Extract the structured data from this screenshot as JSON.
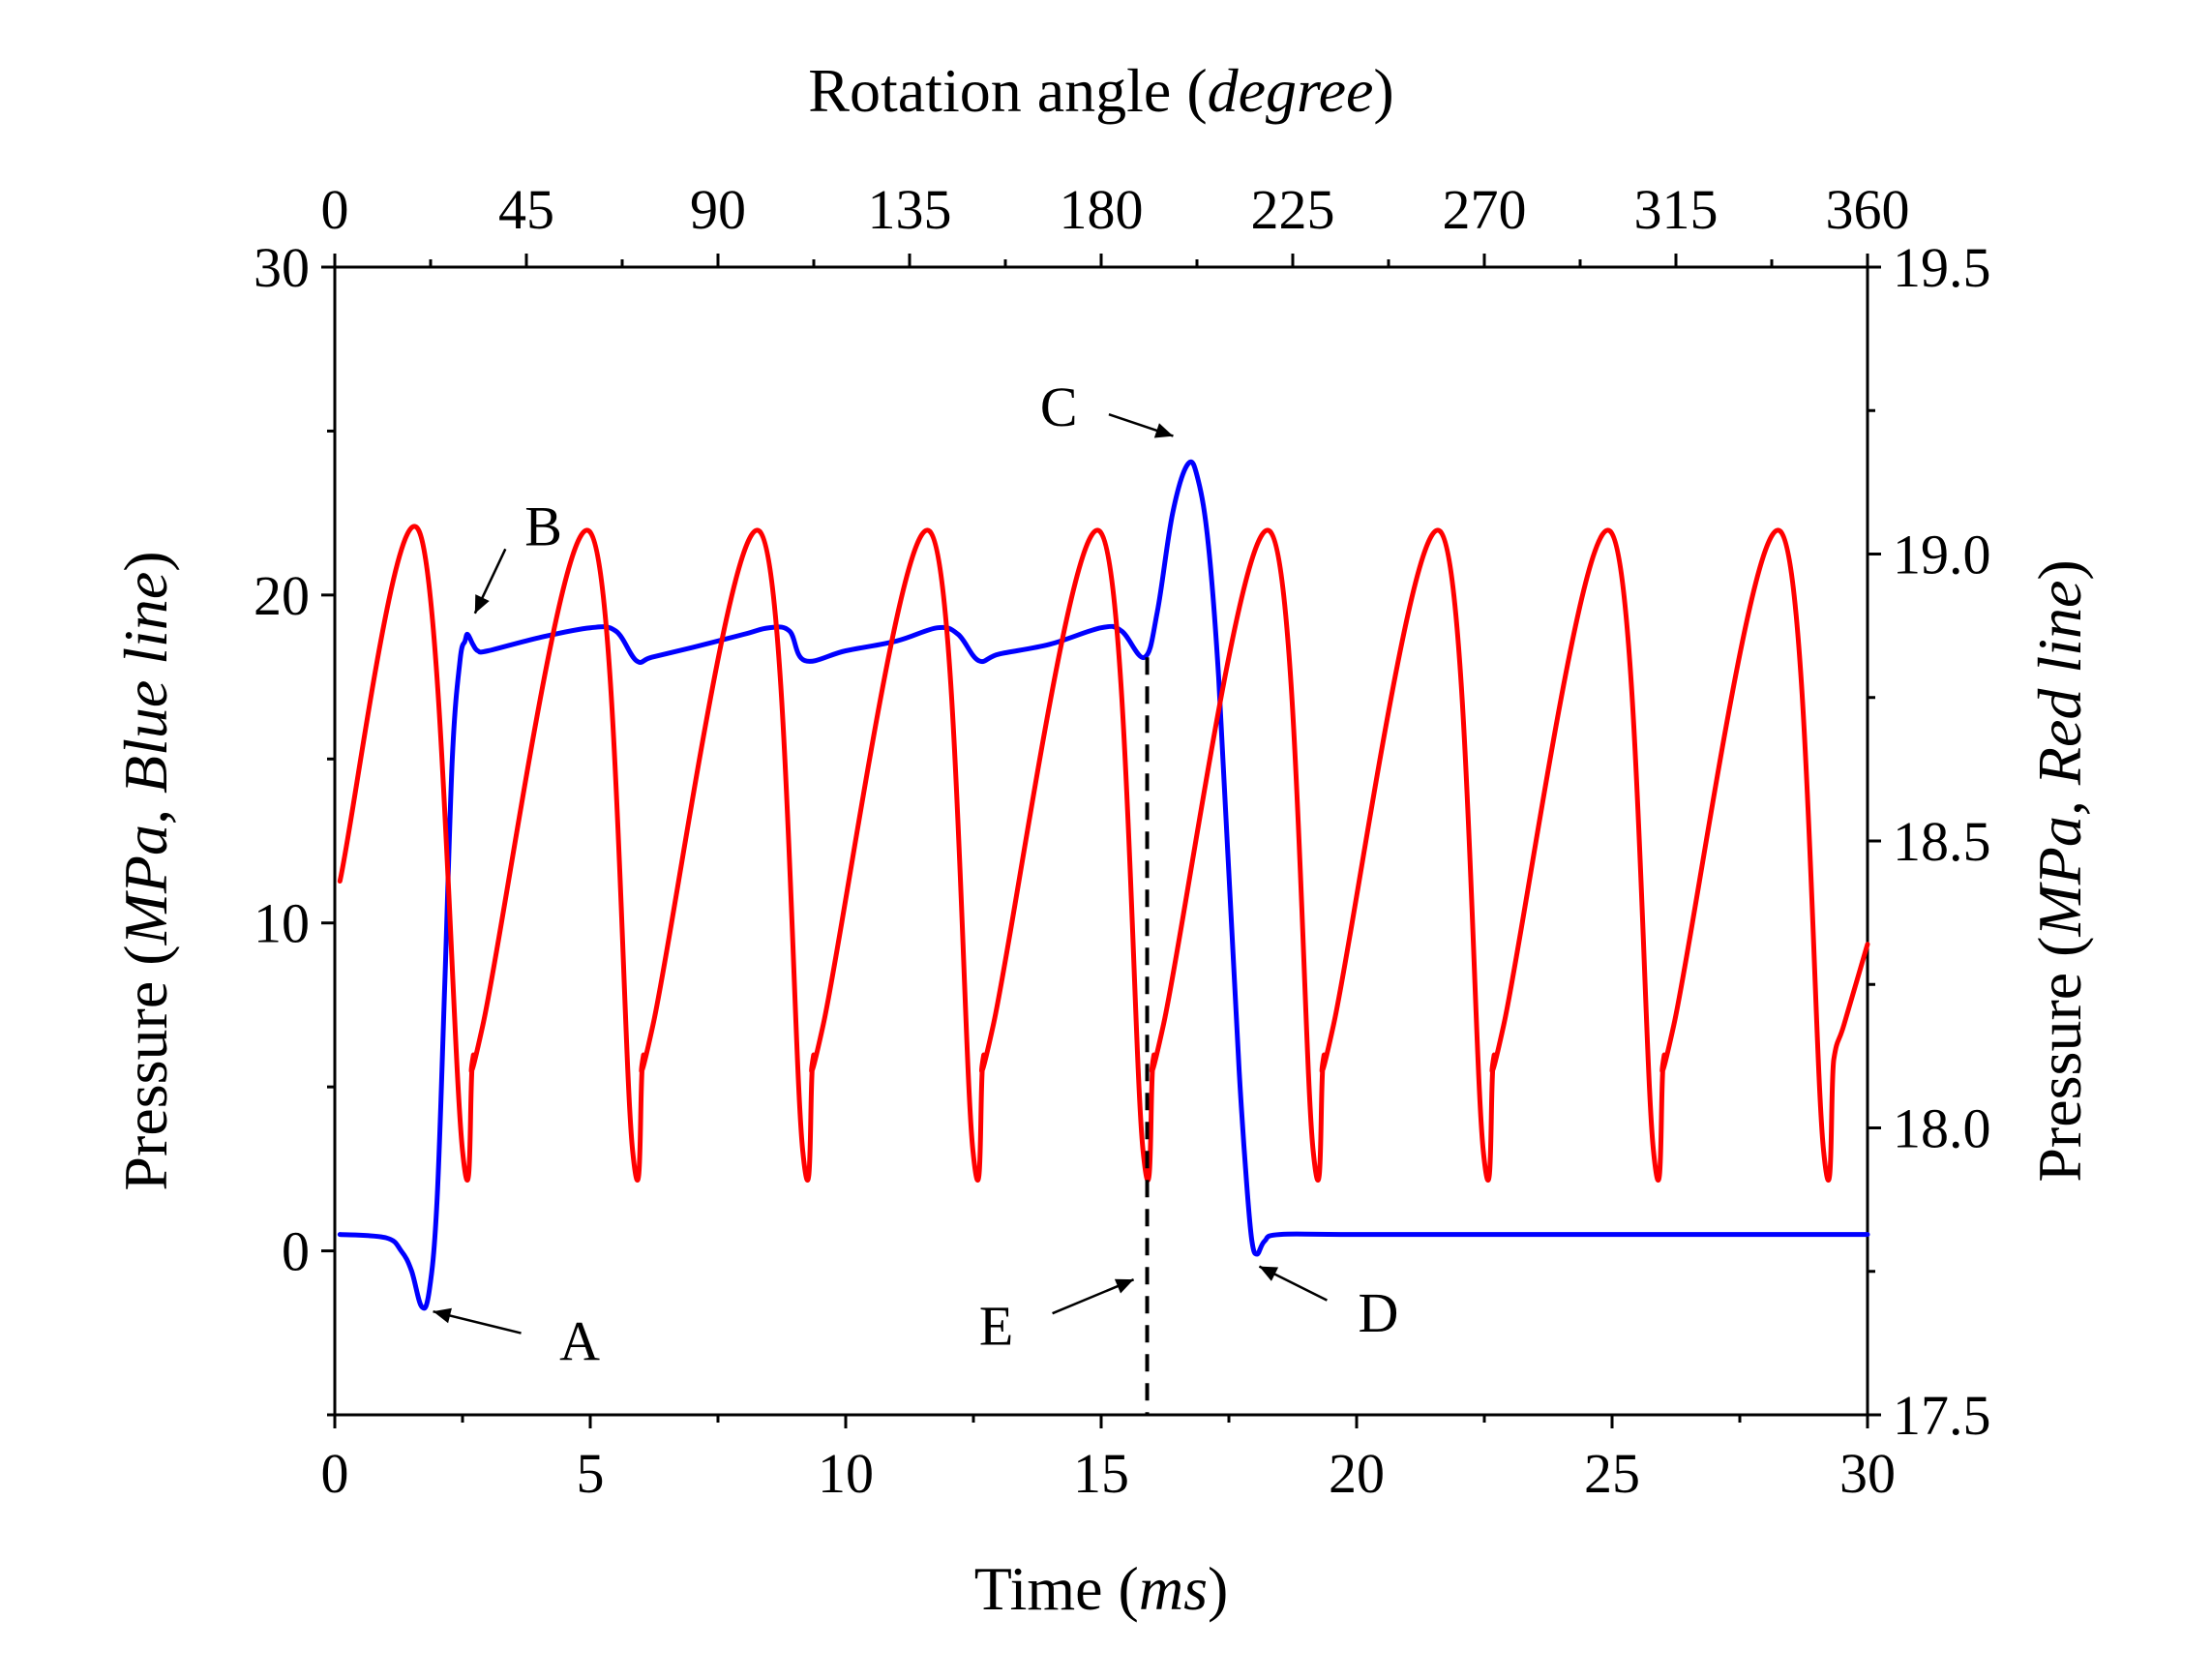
{
  "chart_data": {
    "type": "line",
    "title": "",
    "top_axis": {
      "label": "Rotation angle",
      "label_unit": "degree",
      "range": [
        0,
        360
      ],
      "ticks": [
        "0",
        "45",
        "90",
        "135",
        "180",
        "225",
        "270",
        "315",
        "360"
      ]
    },
    "x_axis": {
      "label": "Time",
      "label_unit": "ms",
      "range": [
        0,
        30
      ],
      "ticks": [
        "0",
        "5",
        "10",
        "15",
        "20",
        "25",
        "30"
      ]
    },
    "y_left": {
      "label_prefix": "Pressure (",
      "label_unit": "MPa, Blue line",
      "label_suffix": ")",
      "range": [
        -5,
        30
      ],
      "ticks": [
        "0",
        "10",
        "20",
        "30"
      ]
    },
    "y_right": {
      "label_prefix": "Pressure (",
      "label_unit": "MPa, Red line",
      "label_suffix": ")",
      "range": [
        17.5,
        19.5
      ],
      "ticks": [
        "17.5",
        "18.0",
        "18.5",
        "19.0",
        "19.5"
      ]
    },
    "series": [
      {
        "name": "Blue line",
        "color": "#0000ff",
        "axis": "left",
        "x": [
          0.1,
          1.0,
          1.3,
          1.5,
          1.7,
          1.85,
          2.0,
          2.15,
          2.3,
          2.45,
          2.55,
          2.6,
          2.7,
          2.8,
          3.0,
          4.0,
          5.0,
          5.5,
          5.9,
          6.2,
          7.0,
          8.0,
          8.5,
          8.9,
          9.2,
          10.0,
          11.0,
          11.8,
          12.2,
          12.6,
          13.0,
          14.0,
          15.0,
          15.4,
          15.85,
          16.1,
          16.4,
          16.7,
          16.9,
          17.1,
          17.3,
          17.5,
          17.7,
          17.85,
          17.95,
          18.05,
          18.2,
          18.5,
          20.0,
          25.0,
          30.0
        ],
        "y": [
          0.5,
          0.4,
          0.0,
          -0.6,
          -1.7,
          -1.2,
          1.5,
          8.0,
          15.0,
          18.0,
          18.6,
          18.8,
          18.5,
          18.3,
          18.3,
          18.7,
          19.0,
          18.9,
          18.0,
          18.1,
          18.4,
          18.8,
          19.0,
          18.9,
          18.0,
          18.3,
          18.6,
          19.0,
          18.8,
          18.0,
          18.2,
          18.5,
          19.0,
          18.9,
          18.1,
          19.5,
          22.5,
          24.0,
          23.5,
          21.5,
          17.5,
          11.5,
          5.5,
          2.0,
          0.3,
          -0.1,
          0.3,
          0.5,
          0.5,
          0.5,
          0.5
        ]
      },
      {
        "name": "Red line",
        "color": "#ff0000",
        "axis": "right",
        "period_ms": 3.33,
        "peak_ms": [
          1.65,
          4.98,
          8.31,
          11.64,
          14.97,
          18.3,
          21.63,
          24.96,
          28.29
        ],
        "trough_ms": [
          2.5,
          5.83,
          9.16,
          12.49,
          15.82,
          19.15,
          22.48,
          25.81,
          29.14
        ],
        "x": [
          0.1,
          1.65,
          2.5,
          2.7,
          2.9,
          4.98,
          5.83,
          6.03,
          6.23,
          8.31,
          9.16,
          9.36,
          9.56,
          11.64,
          12.49,
          12.69,
          12.89,
          14.97,
          15.82,
          16.02,
          16.22,
          18.3,
          19.15,
          19.35,
          19.55,
          21.63,
          22.48,
          22.68,
          22.88,
          24.96,
          25.81,
          26.01,
          26.21,
          28.29,
          29.14,
          29.34,
          29.54,
          30.0
        ],
        "y": [
          18.43,
          19.04,
          17.96,
          18.12,
          18.18,
          19.04,
          17.96,
          18.12,
          18.18,
          19.04,
          17.96,
          18.12,
          18.18,
          19.04,
          17.96,
          18.12,
          18.18,
          19.04,
          17.96,
          18.12,
          18.18,
          19.04,
          17.96,
          18.12,
          18.18,
          19.04,
          17.96,
          18.12,
          18.18,
          19.04,
          17.96,
          18.12,
          18.18,
          19.04,
          17.96,
          18.12,
          18.18,
          18.32
        ]
      }
    ],
    "vertical_reference": {
      "x": 15.9,
      "style": "dashed",
      "from_y": -5,
      "to_y": 18.1
    },
    "annotations": [
      {
        "label": "A",
        "point": [
          1.8,
          -1.8
        ]
      },
      {
        "label": "B",
        "point": [
          2.7,
          19.3
        ]
      },
      {
        "label": "C",
        "point": [
          16.5,
          24.8
        ]
      },
      {
        "label": "D",
        "point": [
          18.0,
          -0.4
        ]
      },
      {
        "label": "E",
        "point": [
          15.75,
          -0.8
        ]
      }
    ],
    "grid": false,
    "legend": "none"
  }
}
